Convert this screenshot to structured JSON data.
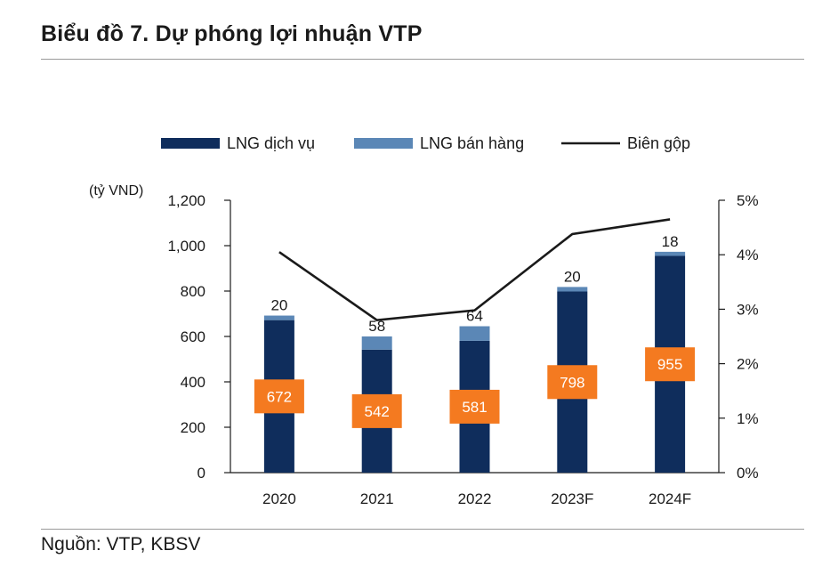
{
  "title": "Biểu đồ 7. Dự phóng lợi nhuận VTP",
  "source": "Nguồn: VTP, KBSV",
  "chart_data": {
    "type": "bar",
    "stacked": true,
    "categories": [
      "2020",
      "2021",
      "2022",
      "2023F",
      "2024F"
    ],
    "series": [
      {
        "name": "LNG dịch vụ",
        "values": [
          672,
          542,
          581,
          798,
          955
        ],
        "color": "#0f2d5c",
        "axis": "left"
      },
      {
        "name": "LNG bán hàng",
        "values": [
          20,
          58,
          64,
          20,
          18
        ],
        "color": "#5b87b6",
        "axis": "left"
      },
      {
        "name": "Biên gộp",
        "type": "line",
        "values": [
          4.05,
          2.8,
          2.98,
          4.38,
          4.65
        ],
        "color": "#1a1a1a",
        "axis": "right"
      }
    ],
    "y_left": {
      "label": "(tỷ VND)",
      "min": 0,
      "max": 1200,
      "ticks": [
        "0",
        "200",
        "400",
        "600",
        "800",
        "1,000",
        "1,200"
      ]
    },
    "y_right": {
      "min": 0,
      "max": 5,
      "ticks": [
        "0%",
        "1%",
        "2%",
        "3%",
        "4%",
        "5%"
      ]
    },
    "data_labels": {
      "service": [
        "672",
        "542",
        "581",
        "798",
        "955"
      ],
      "sales": [
        "20",
        "58",
        "64",
        "20",
        "18"
      ],
      "label_color": "#f47a20"
    },
    "legend_position": "top"
  }
}
